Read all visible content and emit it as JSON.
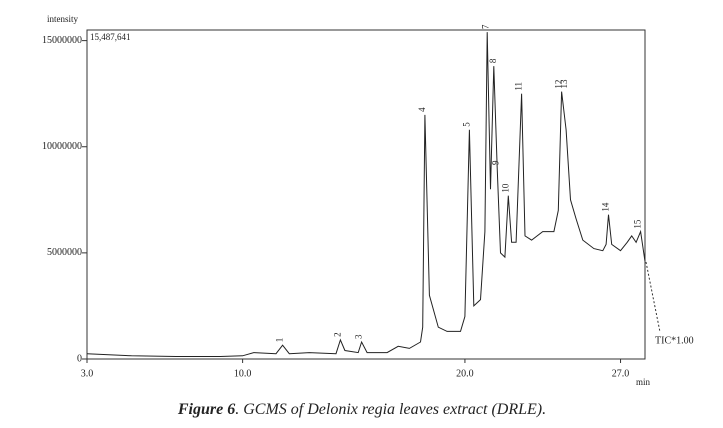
{
  "chart_data": {
    "type": "line",
    "caption_label": "Figure 6",
    "caption": ". GCMS of Delonix regia leaves extract (DRLE).",
    "y_label": "intensity",
    "x_label": "min",
    "max_label": "15,487,641",
    "trace_label": "TIC*1.00",
    "color": "#222222",
    "xlim": [
      3.0,
      28.1
    ],
    "ylim": [
      0,
      15500000
    ],
    "xticks": [
      {
        "value": 3,
        "label": "3.0"
      },
      {
        "value": 10,
        "label": "10.0"
      },
      {
        "value": 20,
        "label": "20.0"
      },
      {
        "value": 27,
        "label": "27.0"
      }
    ],
    "yticks": [
      0,
      5000000,
      10000000,
      15000000
    ],
    "x": [
      3.0,
      5.0,
      7.0,
      9.0,
      10.0,
      10.5,
      11.5,
      11.8,
      12.1,
      13.0,
      14.2,
      14.4,
      14.6,
      15.2,
      15.35,
      15.6,
      16.5,
      17.0,
      17.5,
      18.0,
      18.1,
      18.2,
      18.4,
      18.8,
      19.2,
      19.8,
      20.0,
      20.2,
      20.4,
      20.7,
      20.9,
      21.0,
      21.15,
      21.3,
      21.45,
      21.6,
      21.8,
      21.95,
      22.1,
      22.3,
      22.55,
      22.7,
      23.0,
      23.5,
      24.0,
      24.2,
      24.35,
      24.55,
      24.75,
      25.0,
      25.3,
      25.8,
      26.2,
      26.35,
      26.46,
      26.6,
      27.0,
      27.3,
      27.5,
      27.7,
      27.9,
      28.1
    ],
    "values": [
      250000,
      150000,
      120000,
      120000,
      150000,
      300000,
      250000,
      650000,
      250000,
      300000,
      250000,
      900000,
      400000,
      300000,
      800000,
      300000,
      300000,
      600000,
      500000,
      800000,
      1500000,
      11500000,
      3000000,
      1500000,
      1300000,
      1300000,
      2000000,
      10800000,
      2500000,
      2800000,
      6000000,
      15400000,
      8000000,
      13800000,
      9000000,
      5000000,
      4800000,
      7700000,
      5500000,
      5500000,
      12500000,
      5800000,
      5600000,
      6000000,
      6000000,
      7000000,
      12600000,
      10800000,
      7500000,
      6600000,
      5600000,
      5200000,
      5100000,
      5400000,
      6800000,
      5400000,
      5100000,
      5500000,
      5800000,
      5500000,
      6000000,
      4600000
    ],
    "peak_labels": [
      {
        "text": "1",
        "x": 11.8,
        "y": 650000
      },
      {
        "text": "2",
        "x": 14.4,
        "y": 900000
      },
      {
        "text": "3",
        "x": 15.35,
        "y": 800000
      },
      {
        "text": "4",
        "x": 18.2,
        "y": 11500000
      },
      {
        "text": "5",
        "x": 20.2,
        "y": 10800000
      },
      {
        "text": "7",
        "x": 21.05,
        "y": 15400000
      },
      {
        "text": "8",
        "x": 21.4,
        "y": 13800000
      },
      {
        "text": "9",
        "x": 21.5,
        "y": 9000000
      },
      {
        "text": "10",
        "x": 21.95,
        "y": 7700000
      },
      {
        "text": "11",
        "x": 22.55,
        "y": 12500000
      },
      {
        "text": "12",
        "x": 24.35,
        "y": 12600000
      },
      {
        "text": "13",
        "x": 24.6,
        "y": 12600000
      },
      {
        "text": "14",
        "x": 26.46,
        "y": 6800000
      },
      {
        "text": "15",
        "x": 27.9,
        "y": 6000000
      }
    ]
  }
}
